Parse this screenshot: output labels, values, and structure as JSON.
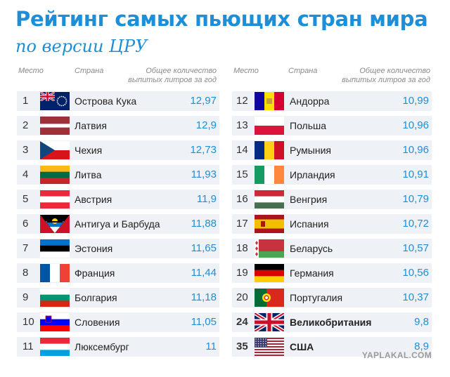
{
  "title": "Рейтинг самых пьющих стран мира",
  "subtitle": "по версии ЦРУ",
  "headers": {
    "rank": "Место",
    "country": "Страна",
    "amount_line1": "Общее количество",
    "amount_line2": "выпитых литров за год"
  },
  "left": [
    {
      "rank": "1",
      "country": "Острова Кука",
      "value": "12,97",
      "flag": "cook-islands"
    },
    {
      "rank": "2",
      "country": "Латвия",
      "value": "12,9",
      "flag": "latvia"
    },
    {
      "rank": "3",
      "country": "Чехия",
      "value": "12,73",
      "flag": "czech"
    },
    {
      "rank": "4",
      "country": "Литва",
      "value": "11,93",
      "flag": "lithuania"
    },
    {
      "rank": "5",
      "country": "Австрия",
      "value": "11,9",
      "flag": "austria"
    },
    {
      "rank": "6",
      "country": "Антигуа и Барбуда",
      "value": "11,88",
      "flag": "antigua-barbuda"
    },
    {
      "rank": "7",
      "country": "Эстония",
      "value": "11,65",
      "flag": "estonia"
    },
    {
      "rank": "8",
      "country": "Франция",
      "value": "11,44",
      "flag": "france"
    },
    {
      "rank": "9",
      "country": "Болгария",
      "value": "11,18",
      "flag": "bulgaria"
    },
    {
      "rank": "10",
      "country": "Словения",
      "value": "11,05",
      "flag": "slovenia"
    },
    {
      "rank": "11",
      "country": "Люксембург",
      "value": "11",
      "flag": "luxembourg"
    }
  ],
  "right": [
    {
      "rank": "12",
      "country": "Андорра",
      "value": "10,99",
      "flag": "andorra"
    },
    {
      "rank": "13",
      "country": "Польша",
      "value": "10,96",
      "flag": "poland"
    },
    {
      "rank": "14",
      "country": "Румыния",
      "value": "10,96",
      "flag": "romania"
    },
    {
      "rank": "15",
      "country": "Ирландия",
      "value": "10,91",
      "flag": "ireland"
    },
    {
      "rank": "16",
      "country": "Венгрия",
      "value": "10,79",
      "flag": "hungary"
    },
    {
      "rank": "17",
      "country": "Испания",
      "value": "10,72",
      "flag": "spain"
    },
    {
      "rank": "18",
      "country": "Беларусь",
      "value": "10,57",
      "flag": "belarus"
    },
    {
      "rank": "19",
      "country": "Германия",
      "value": "10,56",
      "flag": "germany"
    },
    {
      "rank": "20",
      "country": "Португалия",
      "value": "10,37",
      "flag": "portugal"
    },
    {
      "rank": "24",
      "country": "Великобритания",
      "value": "9,8",
      "flag": "united-kingdom"
    },
    {
      "rank": "35",
      "country": "США",
      "value": "8,9",
      "flag": "usa"
    }
  ],
  "watermark": "YAPLAKAL.COM",
  "colors": {
    "accent": "#1d8fd8",
    "row_bg": "#eef1f6"
  }
}
